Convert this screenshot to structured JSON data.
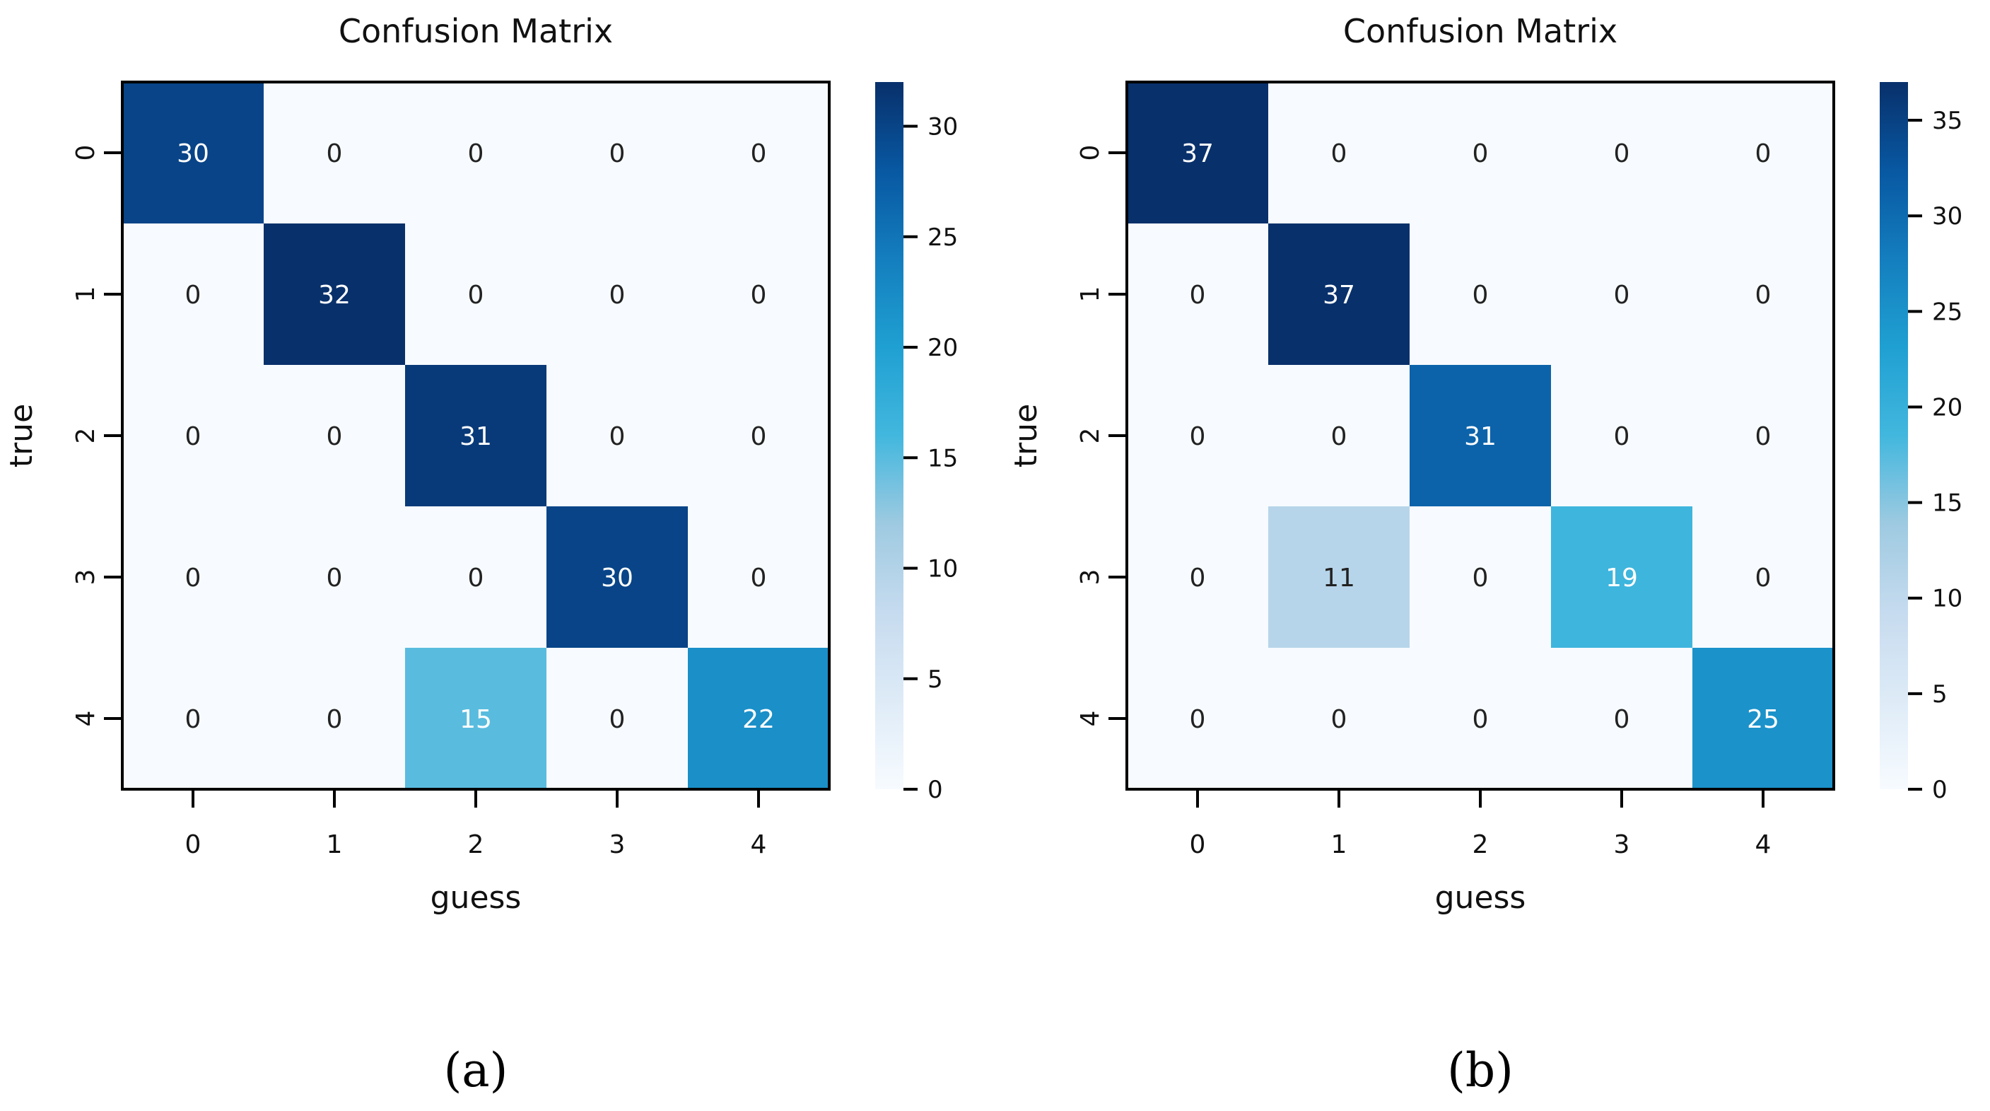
{
  "chart_data": [
    {
      "type": "heatmap",
      "panel_label": "(a)",
      "title": "Confusion Matrix",
      "xlabel": "guess",
      "ylabel": "true",
      "x_ticks": [
        "0",
        "1",
        "2",
        "3",
        "4"
      ],
      "y_ticks": [
        "0",
        "1",
        "2",
        "3",
        "4"
      ],
      "matrix": [
        [
          30,
          0,
          0,
          0,
          0
        ],
        [
          0,
          32,
          0,
          0,
          0
        ],
        [
          0,
          0,
          31,
          0,
          0
        ],
        [
          0,
          0,
          0,
          30,
          0
        ],
        [
          0,
          0,
          15,
          0,
          22
        ]
      ],
      "colorbar": {
        "min": 0,
        "max": 32,
        "ticks": [
          "0",
          "5",
          "10",
          "15",
          "20",
          "25",
          "30"
        ]
      },
      "colormap": "Blues"
    },
    {
      "type": "heatmap",
      "panel_label": "(b)",
      "title": "Confusion Matrix",
      "xlabel": "guess",
      "ylabel": "true",
      "x_ticks": [
        "0",
        "1",
        "2",
        "3",
        "4"
      ],
      "y_ticks": [
        "0",
        "1",
        "2",
        "3",
        "4"
      ],
      "matrix": [
        [
          37,
          0,
          0,
          0,
          0
        ],
        [
          0,
          37,
          0,
          0,
          0
        ],
        [
          0,
          0,
          31,
          0,
          0
        ],
        [
          0,
          11,
          0,
          19,
          0
        ],
        [
          0,
          0,
          0,
          0,
          25
        ]
      ],
      "colorbar": {
        "min": 0,
        "max": 37,
        "ticks": [
          "0",
          "5",
          "10",
          "15",
          "20",
          "25",
          "30",
          "35"
        ]
      },
      "colormap": "Blues"
    }
  ]
}
